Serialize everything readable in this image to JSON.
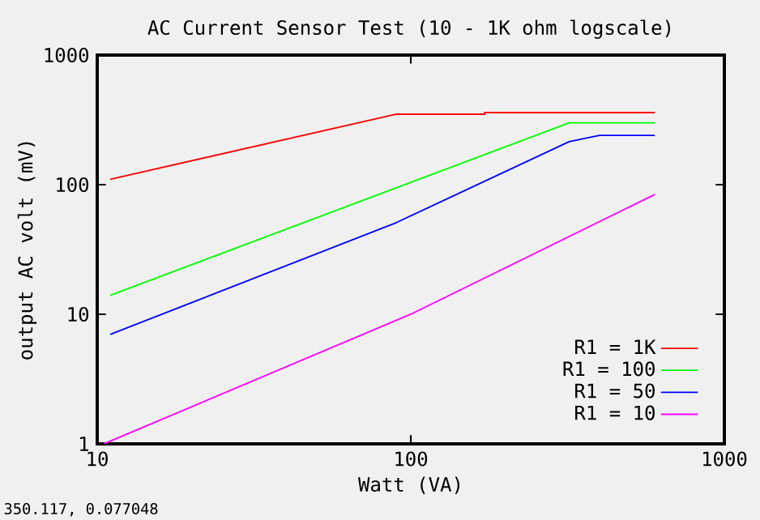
{
  "chart_data": {
    "type": "line",
    "title": "AC Current Sensor Test (10 - 1K ohm logscale)",
    "xlabel": "Watt (VA)",
    "ylabel": "output AC volt (mV)",
    "log": "xy",
    "xlim": [
      10,
      1000
    ],
    "ylim": [
      1,
      1000
    ],
    "xticks": [
      10,
      100,
      1000
    ],
    "yticks": [
      1,
      10,
      100,
      1000
    ],
    "grid": false,
    "legend": "bottom right",
    "marker": "none",
    "line_style": "solid",
    "series": [
      {
        "name": "R1 = 1K",
        "color": "#ff0000",
        "x": [
          11,
          90,
          172,
          172,
          600
        ],
        "values": [
          110,
          350,
          350,
          360,
          360
        ]
      },
      {
        "name": "R1 = 100",
        "color": "#00ff00",
        "x": [
          11,
          320,
          600
        ],
        "values": [
          14,
          300,
          300
        ]
      },
      {
        "name": "R1 = 50",
        "color": "#0000ff",
        "x": [
          11,
          90,
          320,
          400,
          600
        ],
        "values": [
          7,
          51,
          215,
          240,
          240
        ]
      },
      {
        "name": "R1 = 10",
        "color": "#ff00ff",
        "x": [
          10.5,
          100,
          600
        ],
        "values": [
          1,
          10,
          84
        ]
      }
    ],
    "annotations": [
      "350.117, 0.077048"
    ]
  }
}
